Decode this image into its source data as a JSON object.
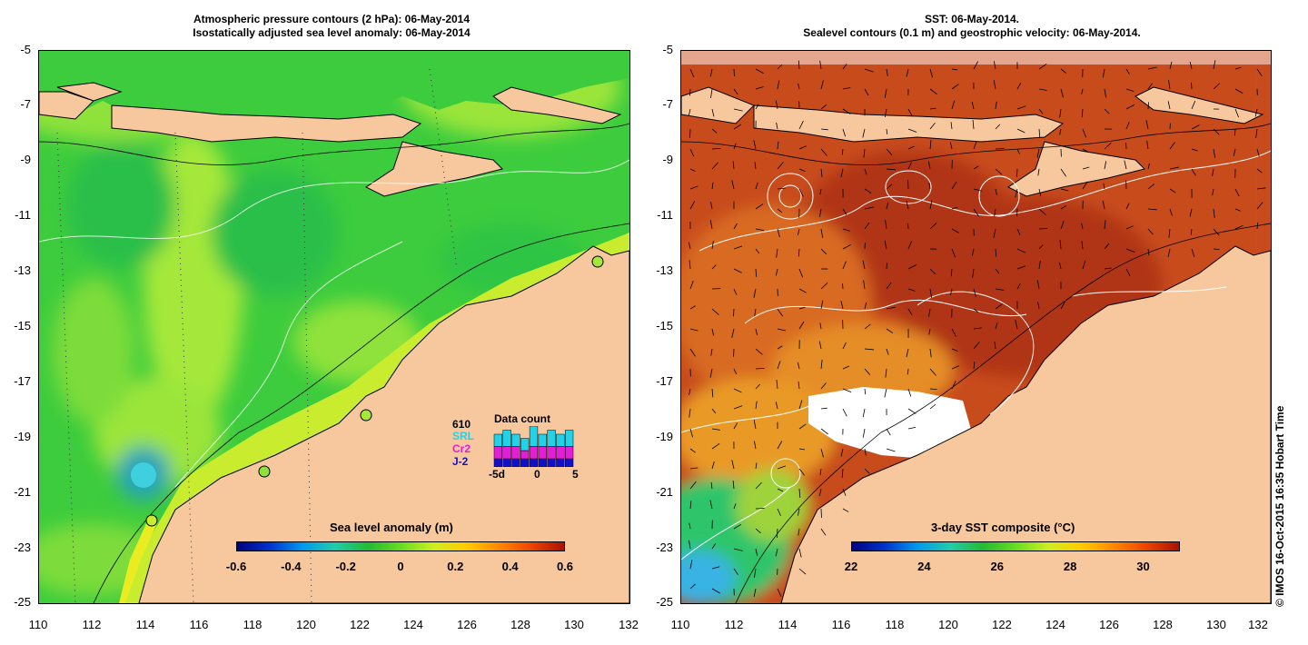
{
  "left": {
    "title_line1": "Atmospheric pressure contours (2 hPa): 06-May-2014",
    "title_line2": "Isostatically adjusted sea level anomaly: 06-May-2014",
    "colorbar": {
      "title": "Sea level anomaly (m)",
      "labels": [
        "-0.6",
        "-0.4",
        "-0.2",
        "0",
        "0.2",
        "0.4",
        "0.6"
      ]
    },
    "inset": {
      "count_label": "610",
      "title": "Data count",
      "sat1": "SRL",
      "sat2": "Cr2",
      "sat3": "J-2",
      "axis_left": "-5d",
      "axis_mid": "0",
      "axis_right": "5",
      "colors": {
        "sat1": "#22d3e8",
        "sat2": "#e21fd6",
        "sat3": "#1010c8"
      },
      "bars_sat1": [
        3,
        4,
        3,
        3,
        5,
        3,
        4,
        3,
        4
      ],
      "bars_sat2": [
        3,
        3,
        3,
        2,
        3,
        3,
        3,
        3,
        3
      ],
      "bars_sat3": [
        2,
        2,
        2,
        2,
        2,
        2,
        2,
        2,
        2
      ]
    }
  },
  "right": {
    "title_line1": "SST: 06-May-2014.",
    "title_line2": "Sealevel contours (0.1 m) and geostrophic velocity: 06-May-2014.",
    "colorbar": {
      "title": "3-day SST composite (°C)",
      "labels": [
        "22",
        "24",
        "26",
        "28",
        "30"
      ]
    }
  },
  "axes": {
    "x_ticks": [
      "110",
      "112",
      "114",
      "116",
      "118",
      "120",
      "122",
      "124",
      "126",
      "128",
      "130",
      "132"
    ],
    "y_ticks": [
      "-5",
      "-7",
      "-9",
      "-11",
      "-13",
      "-15",
      "-17",
      "-19",
      "-21",
      "-23",
      "-25"
    ]
  },
  "credit": "© IMOS 16-Oct-2015 16:35 Hobart Time",
  "colors": {
    "land": "#f7c89d",
    "sla_main": "#3dcc3d",
    "sst_main": "#c84b1a"
  }
}
